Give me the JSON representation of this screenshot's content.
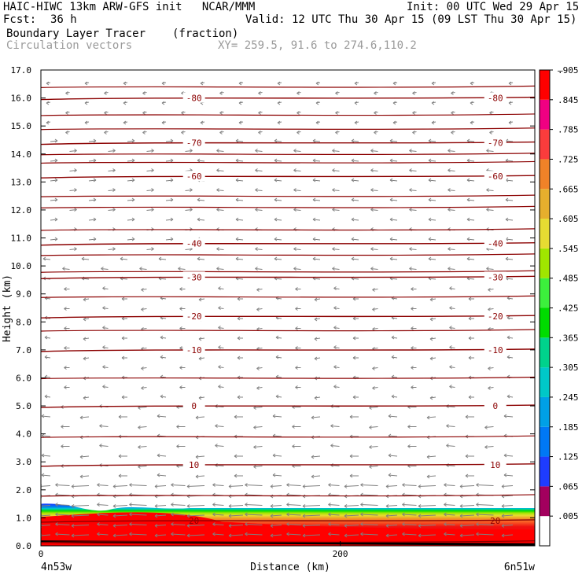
{
  "header": {
    "title_left": "HAIC-HIWC 13km ARW-GFS init   NCAR/MMM",
    "init": "Init: 00 UTC Wed 29 Apr 15",
    "fcst_label": "Fcst:",
    "fcst_value": "36 h",
    "valid": "Valid: 12 UTC Thu 30 Apr 15 (09 LST Thu 30 Apr 15)",
    "field_name": "Boundary Layer Tracer",
    "field_units": "(fraction)",
    "overlay_name": "Circulation vectors",
    "xy": "XY= 259.5, 91.6 to 274.6,110.2"
  },
  "chart_data": {
    "type": "heatmap",
    "xlabel": "Distance (km)",
    "ylabel": "Height (km)",
    "xlim": [
      0,
      330
    ],
    "ylim": [
      0,
      17
    ],
    "x_ticks": [
      0,
      200
    ],
    "x_tick_labels": [
      "0",
      "200"
    ],
    "x_end_labels": {
      "left": "4n53w",
      "right": "6n51w"
    },
    "y_ticks": [
      0,
      1,
      2,
      3,
      4,
      5,
      6,
      7,
      8,
      9,
      10,
      11,
      12,
      13,
      14,
      15,
      16,
      17
    ],
    "y_tick_labels": [
      "0.0",
      "1.0",
      "2.0",
      "3.0",
      "4.0",
      "5.0",
      "6.0",
      "7.0",
      "8.0",
      "9.0",
      "10.0",
      "11.0",
      "12.0",
      "13.0",
      "14.0",
      "15.0",
      "16.0",
      "17.0"
    ],
    "colorbar": {
      "labels": [
        ".005",
        ".065",
        ".125",
        ".185",
        ".245",
        ".305",
        ".365",
        ".425",
        ".485",
        ".545",
        ".605",
        ".665",
        ".725",
        ".785",
        ".845",
        ".905"
      ],
      "top_label": "–",
      "colors": [
        "#ffffff",
        "#a3005e",
        "#1e3cff",
        "#0078f5",
        "#00a0e6",
        "#00c8c8",
        "#00d28c",
        "#00dc00",
        "#3cf03c",
        "#a0e600",
        "#e6dc32",
        "#e6af2d",
        "#f08228",
        "#fa3c3c",
        "#f00082",
        "#ff0000"
      ]
    },
    "tracer_layer": {
      "left_top_km": 1.5,
      "right_top_km": 1.35,
      "red_top_left_km": 1.2,
      "red_top_right_km": 0.8
    },
    "temperature_contours": [
      {
        "value": -80,
        "label": "-80",
        "height_km": 16.0
      },
      {
        "value": -70,
        "label": "-70",
        "height_km": 14.4
      },
      {
        "value": -60,
        "label": "-60",
        "height_km": 13.2
      },
      {
        "value": -40,
        "label": "-40",
        "height_km": 10.8
      },
      {
        "value": -30,
        "label": "-30",
        "height_km": 9.6
      },
      {
        "value": -20,
        "label": "-20",
        "height_km": 8.2
      },
      {
        "value": -10,
        "label": "-10",
        "height_km": 7.0
      },
      {
        "value": 0,
        "label": "0",
        "height_km": 5.0
      },
      {
        "value": 10,
        "label": "10",
        "height_km": 2.9
      },
      {
        "value": 20,
        "label": "20",
        "height_km": 0.9
      }
    ],
    "extra_contour_heights_km": [
      0.15,
      1.8,
      3.9,
      6.0,
      7.7,
      8.9,
      9.8,
      10.4,
      11.3,
      12.1,
      12.5,
      13.7,
      14.0,
      14.9,
      15.4,
      16.4
    ]
  }
}
